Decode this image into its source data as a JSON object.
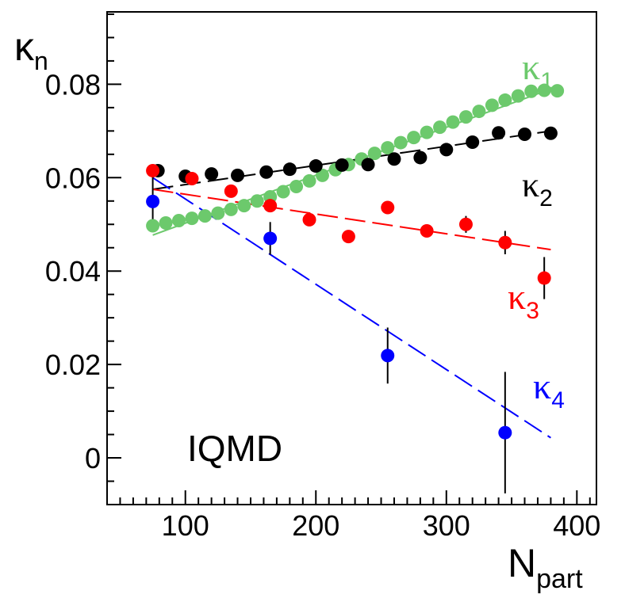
{
  "chart_data": {
    "type": "scatter",
    "title": "",
    "annotation": "IQMD",
    "xlabel": {
      "main": "N",
      "sub": "part"
    },
    "ylabel": {
      "main": "κ",
      "sub": "n"
    },
    "xlim": [
      40,
      415
    ],
    "ylim": [
      -0.01,
      0.0955
    ],
    "xticks": [
      {
        "value": 100,
        "label": "100"
      },
      {
        "value": 200,
        "label": "200"
      },
      {
        "value": 300,
        "label": "300"
      },
      {
        "value": 400,
        "label": "400"
      }
    ],
    "yticks": [
      {
        "value": 0,
        "label": "0"
      },
      {
        "value": 0.02,
        "label": "0.02"
      },
      {
        "value": 0.04,
        "label": "0.04"
      },
      {
        "value": 0.06,
        "label": "0.06"
      },
      {
        "value": 0.08,
        "label": "0.08"
      }
    ],
    "grid": false,
    "series": [
      {
        "label": {
          "main": "κ",
          "sub": "1"
        },
        "color": "#6cc96c",
        "points": [
          [
            75,
            0.0497
          ],
          [
            85,
            0.0503
          ],
          [
            95,
            0.0508
          ],
          [
            105,
            0.0513
          ],
          [
            115,
            0.0518
          ],
          [
            125,
            0.0524
          ],
          [
            135,
            0.0532
          ],
          [
            145,
            0.054
          ],
          [
            155,
            0.055
          ],
          [
            165,
            0.0559
          ],
          [
            175,
            0.057
          ],
          [
            185,
            0.0581
          ],
          [
            195,
            0.0593
          ],
          [
            205,
            0.0605
          ],
          [
            215,
            0.0617
          ],
          [
            225,
            0.0628
          ],
          [
            235,
            0.064
          ],
          [
            245,
            0.0652
          ],
          [
            255,
            0.0664
          ],
          [
            265,
            0.0675
          ],
          [
            275,
            0.0686
          ],
          [
            285,
            0.0697
          ],
          [
            295,
            0.0708
          ],
          [
            305,
            0.0719
          ],
          [
            315,
            0.073
          ],
          [
            325,
            0.0742
          ],
          [
            335,
            0.0755
          ],
          [
            345,
            0.0766
          ],
          [
            355,
            0.0775
          ],
          [
            365,
            0.0785
          ],
          [
            375,
            0.0787
          ],
          [
            385,
            0.0786
          ]
        ],
        "fit": {
          "x": [
            75,
            385
          ],
          "y": [
            0.0477,
            0.0795
          ],
          "style": "solid"
        }
      },
      {
        "label": {
          "main": "κ",
          "sub": "2"
        },
        "color": "#000000",
        "points": [
          [
            79,
            0.0615
          ],
          [
            100,
            0.0603
          ],
          [
            120,
            0.0608
          ],
          [
            140,
            0.0605
          ],
          [
            162,
            0.0612
          ],
          [
            180,
            0.0618
          ],
          [
            200,
            0.0625
          ],
          [
            220,
            0.0627
          ],
          [
            240,
            0.0628
          ],
          [
            260,
            0.064
          ],
          [
            280,
            0.0643
          ],
          [
            300,
            0.066
          ],
          [
            320,
            0.0676
          ],
          [
            340,
            0.0696
          ],
          [
            360,
            0.0693
          ],
          [
            380,
            0.0695
          ]
        ],
        "fit": {
          "x": [
            75,
            380
          ],
          "y": [
            0.0575,
            0.07
          ],
          "style": "dashed"
        }
      },
      {
        "label": {
          "main": "κ",
          "sub": "3"
        },
        "color": "#ff0000",
        "points": [
          [
            75,
            0.0615
          ],
          [
            105,
            0.0598
          ],
          [
            135,
            0.0571
          ],
          [
            165,
            0.054
          ],
          [
            195,
            0.051
          ],
          [
            225,
            0.0474
          ],
          [
            255,
            0.0536
          ],
          [
            285,
            0.0486
          ],
          [
            315,
            0.05
          ],
          [
            345,
            0.0461
          ],
          [
            375,
            0.0385
          ]
        ],
        "errors": [
          0.0008,
          0.0008,
          0.0008,
          0.0009,
          0.0009,
          0.001,
          0.001,
          0.0013,
          0.0018,
          0.0025,
          0.0045
        ],
        "fit": {
          "x": [
            75,
            380
          ],
          "y": [
            0.0575,
            0.0446
          ],
          "style": "dashed"
        }
      },
      {
        "label": {
          "main": "κ",
          "sub": "4"
        },
        "color": "#0000ff",
        "points": [
          [
            75,
            0.0549
          ],
          [
            165,
            0.047
          ],
          [
            255,
            0.0219
          ],
          [
            345,
            0.0054
          ]
        ],
        "errors": [
          0.0055,
          0.0035,
          0.006,
          0.013
        ],
        "fit": {
          "x": [
            75,
            380
          ],
          "y": [
            0.06,
            0.0043
          ],
          "style": "dashed"
        }
      }
    ]
  }
}
